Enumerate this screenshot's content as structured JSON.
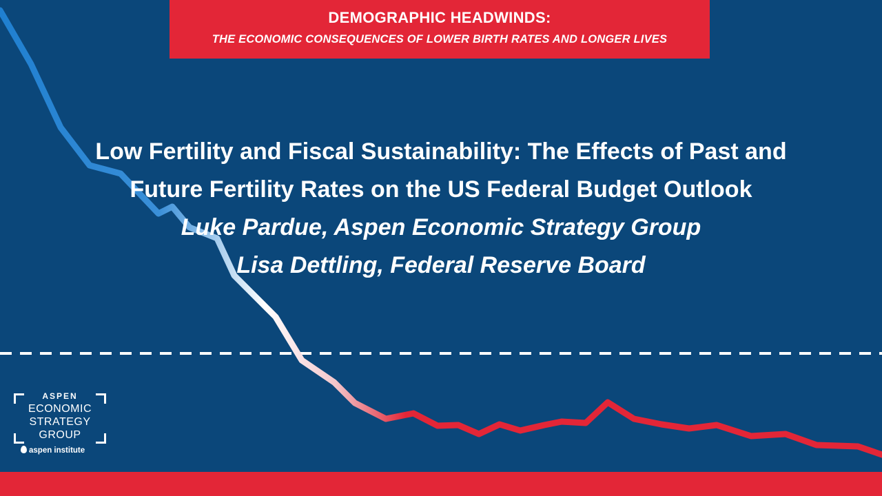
{
  "banner": {
    "title": "DEMOGRAPHIC HEADWINDS:",
    "subtitle": "THE ECONOMIC CONSEQUENCES OF LOWER BIRTH RATES AND LONGER LIVES"
  },
  "main": {
    "title_line1": "Low Fertility and Fiscal Sustainability: The Effects of Past and",
    "title_line2": "Future Fertility Rates on the US Federal Budget Outlook",
    "author1": "Luke Pardue, Aspen Economic Strategy Group",
    "author2": "Lisa Dettling, Federal Reserve Board"
  },
  "logo": {
    "top": "ASPEN",
    "line1": "ECONOMIC",
    "line2": "STRATEGY",
    "line3": "GROUP",
    "sub": "aspen institute"
  },
  "colors": {
    "background": "#0b477a",
    "accent_red": "#e32637",
    "line_blue": "#1f7fd0",
    "line_red": "#e32637",
    "white": "#ffffff"
  }
}
